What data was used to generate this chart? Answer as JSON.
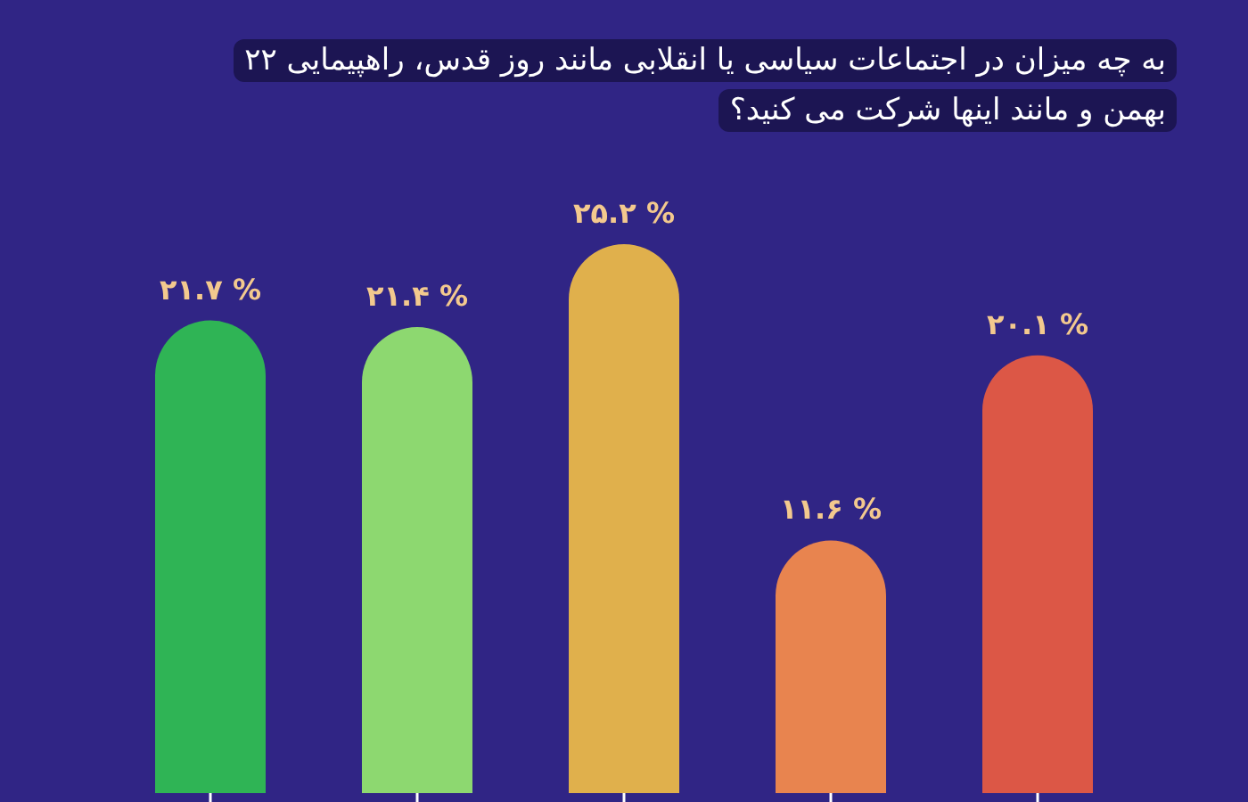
{
  "chart_data": {
    "type": "bar",
    "title": "به چه میزان در اجتماعات سیاسی یا انقلابی مانند روز قدس، راهپیمایی ۲۲ بهمن و مانند اینها شرکت می کنید؟",
    "categories": [
      null,
      null,
      null,
      null,
      null
    ],
    "values": [
      21.7,
      21.4,
      25.2,
      11.6,
      20.1
    ],
    "colors": [
      "#2fb455",
      "#8dd870",
      "#e0b04c",
      "#e8844f",
      "#dc5746"
    ],
    "value_labels": [
      "۲۱.۷ %",
      "۲۱.۴ %",
      "۲۵.۲ %",
      "۱۱.۶ %",
      "۲۰.۱ %"
    ]
  }
}
